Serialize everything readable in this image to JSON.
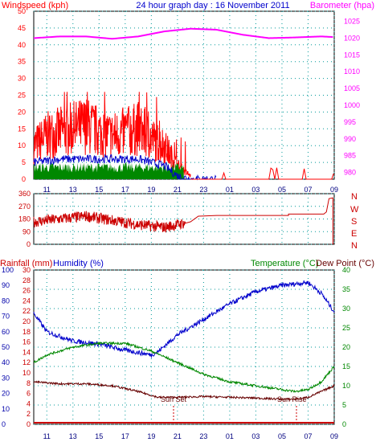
{
  "header": {
    "left": "Windspeed (kph)",
    "center": "24 hour graph day : 16 November 2011",
    "right": "Barometer (hpa)"
  },
  "bottom_header": {
    "left1": "Rainfall (mm)",
    "left2": "Humidity (%)",
    "right1": "Temperature (°C)",
    "right2": "Dew Point (°C)"
  },
  "x_ticks": [
    "11",
    "13",
    "15",
    "17",
    "19",
    "21",
    "23",
    "01",
    "03",
    "05",
    "07",
    "09"
  ],
  "annotations": {
    "sunset": "Sun Set",
    "sunrise": "Sun Rise"
  },
  "colors": {
    "wind": "#ff0000",
    "avg_wind": "#0000cc",
    "gust_base": "#008800",
    "barometer": "#ff00ff",
    "direction": "#cc0000",
    "humidity": "#0000cc",
    "temperature": "#008800",
    "dewpoint": "#660000",
    "rainfall": "#cc0000",
    "grid": "#009999",
    "axis_blue": "#0000aa"
  },
  "chart_data": [
    {
      "type": "line",
      "title": "24 hour graph day : 16 November 2011",
      "x_ticks": [
        "11",
        "13",
        "15",
        "17",
        "19",
        "21",
        "23",
        "01",
        "03",
        "05",
        "07",
        "09"
      ],
      "left_axis": {
        "label": "Windspeed (kph)",
        "ylim": [
          0,
          50
        ],
        "ticks": [
          0,
          5,
          10,
          15,
          20,
          25,
          30,
          35,
          40,
          45,
          50
        ]
      },
      "right_axis": {
        "label": "Barometer (hpa)",
        "ylim": [
          980,
          1025
        ],
        "ticks": [
          980,
          985,
          990,
          995,
          1000,
          1005,
          1010,
          1015,
          1020,
          1025
        ]
      },
      "series": [
        {
          "name": "Windspeed (kph)",
          "x": [
            10,
            11,
            12,
            13,
            14,
            15,
            16,
            17,
            18,
            19,
            20,
            21,
            22,
            23,
            24,
            25,
            26,
            27,
            28,
            29,
            30,
            31,
            32,
            33
          ],
          "values": [
            10,
            13,
            14,
            15,
            16,
            14,
            13,
            14,
            15,
            12,
            10,
            4,
            1,
            2,
            0,
            0,
            0,
            0,
            0,
            0,
            0,
            0,
            1,
            2
          ]
        },
        {
          "name": "Average wind",
          "x": [
            10,
            12,
            14,
            16,
            18,
            20,
            21,
            22,
            24,
            33
          ],
          "values": [
            5,
            6,
            6,
            6,
            6,
            4,
            1,
            0,
            0,
            0
          ]
        },
        {
          "name": "Barometer (hpa)",
          "x": [
            10,
            12,
            14,
            16,
            18,
            20,
            22,
            24,
            26,
            28,
            30,
            32,
            33
          ],
          "values": [
            1020,
            1020.5,
            1020.5,
            1019.8,
            1020.5,
            1022,
            1022.8,
            1022.5,
            1021,
            1020,
            1020.2,
            1020.5,
            1020.3
          ]
        }
      ]
    },
    {
      "type": "line",
      "x_ticks": [
        "11",
        "13",
        "15",
        "17",
        "19",
        "21",
        "23",
        "01",
        "03",
        "05",
        "07",
        "09"
      ],
      "y_ticks": [
        0,
        90,
        180,
        270,
        360
      ],
      "right_labels": [
        "N",
        "W",
        "S",
        "E",
        "N"
      ],
      "ylim": [
        0,
        360
      ],
      "series": [
        {
          "name": "Wind direction",
          "x": [
            10,
            12,
            14,
            16,
            18,
            20,
            21,
            22,
            23,
            24,
            29,
            30,
            32,
            32.7,
            33
          ],
          "values": [
            160,
            180,
            200,
            170,
            140,
            120,
            140,
            160,
            200,
            205,
            205,
            220,
            230,
            330,
            0
          ]
        }
      ]
    },
    {
      "type": "line",
      "x_ticks": [
        "11",
        "13",
        "15",
        "17",
        "19",
        "21",
        "23",
        "01",
        "03",
        "05",
        "07",
        "09"
      ],
      "axes": {
        "rainfall": {
          "label": "Rainfall (mm)",
          "ylim": [
            0,
            30
          ],
          "ticks": [
            0,
            2,
            4,
            6,
            8,
            10,
            12,
            14,
            16,
            18,
            20,
            22,
            24,
            26,
            28,
            30
          ]
        },
        "humidity": {
          "label": "Humidity (%)",
          "ylim": [
            0,
            100
          ],
          "ticks": [
            0,
            10,
            20,
            30,
            40,
            50,
            60,
            70,
            80,
            90,
            100
          ]
        },
        "temperature": {
          "label": "Temperature (°C)",
          "ylim": [
            0,
            40
          ],
          "ticks": [
            0,
            5,
            10,
            15,
            20,
            25,
            30,
            35,
            40
          ]
        }
      },
      "series": [
        {
          "name": "Humidity (%)",
          "x": [
            10,
            11,
            13,
            15,
            17,
            19,
            19.5,
            21,
            23,
            25,
            27,
            29,
            30,
            31,
            32,
            33
          ],
          "values": [
            72,
            60,
            54,
            52,
            48,
            45,
            47,
            58,
            68,
            78,
            86,
            90,
            91,
            92,
            85,
            73
          ]
        },
        {
          "name": "Temperature (°C)",
          "x": [
            10,
            11,
            13,
            15,
            17,
            19,
            21,
            23,
            25,
            27,
            29,
            30,
            31,
            32,
            33
          ],
          "values": [
            16,
            18,
            20,
            21,
            21,
            19,
            16,
            13,
            11,
            10,
            9,
            8.5,
            9,
            11,
            15
          ]
        },
        {
          "name": "Dew Point (°C)",
          "x": [
            10,
            12,
            14,
            16,
            18,
            19.5,
            21,
            23,
            25,
            27,
            29,
            30,
            31,
            32,
            33
          ],
          "values": [
            11,
            10.5,
            10.5,
            10,
            8.5,
            7,
            7,
            7.2,
            7,
            6.8,
            6.5,
            6.5,
            7,
            8.5,
            10
          ]
        },
        {
          "name": "Rainfall (mm)",
          "x": [
            10,
            33
          ],
          "values": [
            0,
            0
          ]
        }
      ]
    }
  ]
}
